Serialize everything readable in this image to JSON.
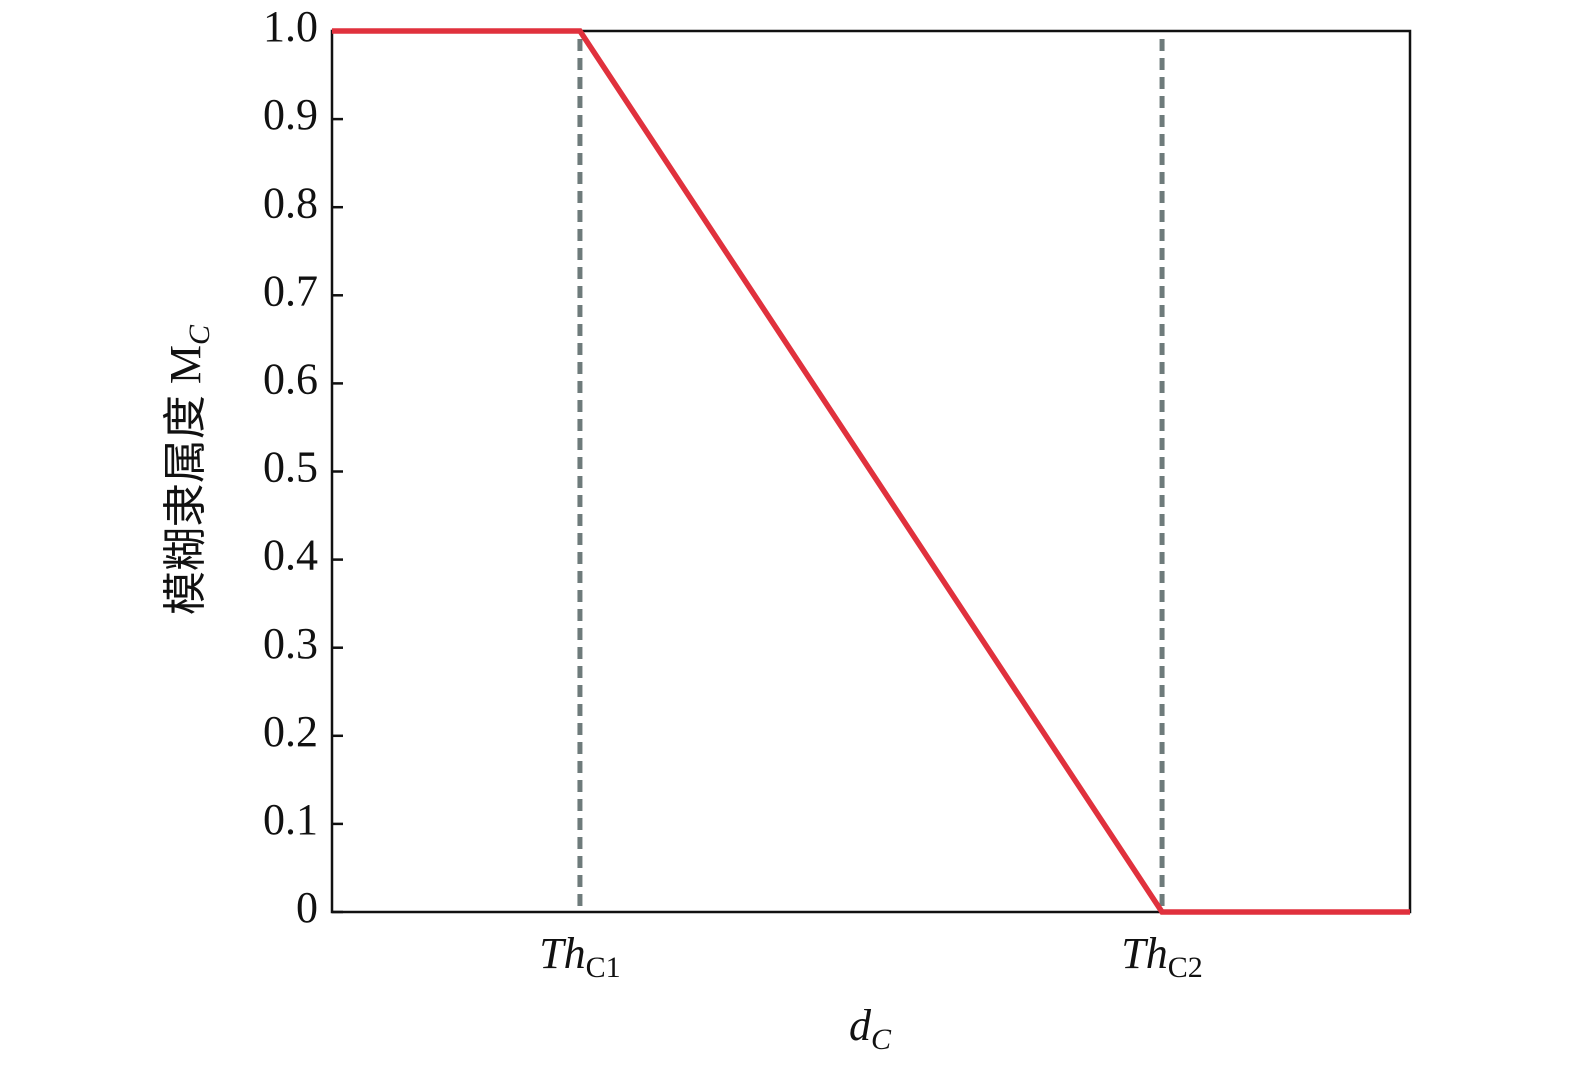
{
  "chart_data": {
    "type": "line",
    "x_label": {
      "text": "d",
      "sub": "C"
    },
    "y_label": {
      "text": "模糊隶属度 M",
      "sub": "C"
    },
    "x": [
      0,
      23,
      77,
      100
    ],
    "values": [
      1,
      1,
      0,
      0
    ],
    "color": "#e0313d",
    "xlim": [
      0,
      100
    ],
    "xticks": [
      {
        "value": 23,
        "label": "Th",
        "sub": "C1"
      },
      {
        "value": 77,
        "label": "Th",
        "sub": "C2"
      }
    ],
    "threshold_lines": true,
    "threshold_color": "#6e7b7b",
    "ylim": [
      0,
      1
    ],
    "yticks": [
      0,
      0.1,
      0.2,
      0.3,
      0.4,
      0.5,
      0.6,
      0.7,
      0.8,
      0.9,
      {
        "value": 1,
        "label": "1.0"
      }
    ]
  }
}
